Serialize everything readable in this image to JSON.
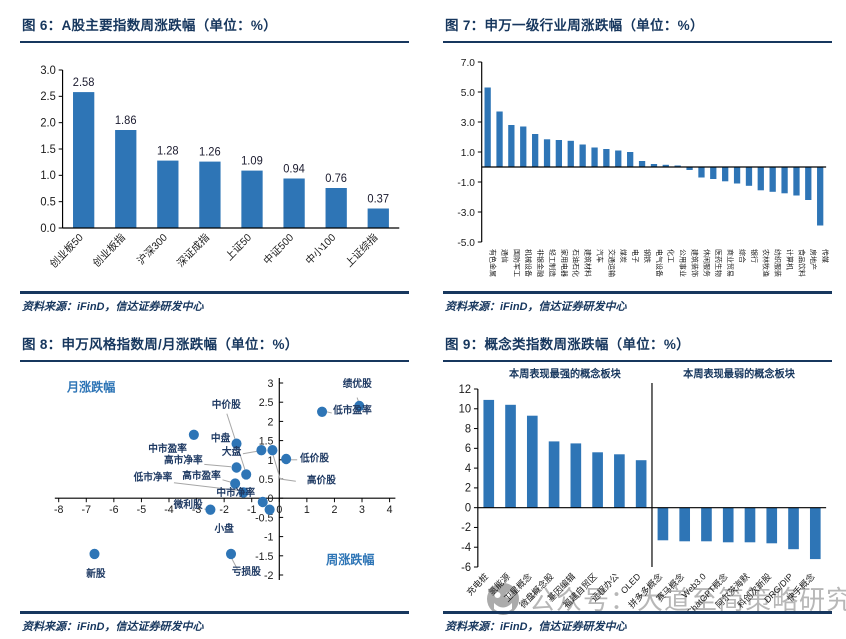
{
  "page": {
    "source_label": "资料来源：iFinD，信达证券研发中心",
    "watermark_text": "公众号：大道至简策略研究"
  },
  "colors": {
    "navy": "#17375e",
    "bar_blue": "#2e75b6",
    "axis_black": "#000000",
    "tick_text": "#1a1a1a",
    "leader_gray": "#a6a6a6",
    "annotation_blue": "#2e75b6",
    "point_label_navy": "#1f3a63",
    "watermark_gray": "#b7b7b7"
  },
  "chart_data": [
    {
      "id": "fig6",
      "type": "bar",
      "title": "图 6：A股主要指数周涨跌幅（单位：%）",
      "categories": [
        "创业板50",
        "创业板指",
        "沪深300",
        "深证成指",
        "上证50",
        "中证500",
        "中小100",
        "上证综指"
      ],
      "values": [
        2.58,
        1.86,
        1.28,
        1.26,
        1.09,
        0.94,
        0.76,
        0.37
      ],
      "data_labels": [
        "2.58",
        "1.86",
        "1.28",
        "1.26",
        "1.09",
        "0.94",
        "0.76",
        "0.37"
      ],
      "ylim": [
        0,
        3
      ],
      "ytick": 0.5,
      "grid": false,
      "legend": "none"
    },
    {
      "id": "fig7",
      "type": "bar",
      "title": "图 7：申万一级行业周涨跌幅（单位：%）",
      "categories": [
        "有色金属",
        "通信",
        "国防军工",
        "机械设备",
        "非银金融",
        "轻工制造",
        "家用电器",
        "石油石化",
        "建筑材料",
        "汽车",
        "交通运输",
        "煤炭",
        "电子",
        "钢铁",
        "电气设备",
        "化工",
        "公用事业",
        "建筑装饰",
        "休闲服务",
        "医药生物",
        "商业贸易",
        "综合",
        "银行",
        "农林牧渔",
        "纺织服装",
        "计算机",
        "食品饮料",
        "房地产",
        "传媒"
      ],
      "values": [
        5.3,
        3.7,
        2.8,
        2.7,
        2.2,
        1.85,
        1.8,
        1.75,
        1.5,
        1.3,
        1.2,
        1.1,
        1.0,
        0.4,
        0.2,
        0.15,
        0.1,
        -0.2,
        -0.7,
        -0.8,
        -0.95,
        -1.1,
        -1.25,
        -1.55,
        -1.65,
        -1.75,
        -1.9,
        -2.2,
        -3.9
      ],
      "ylim": [
        -5,
        7
      ],
      "ytick": 2,
      "grid": false,
      "legend": "none"
    },
    {
      "id": "fig8",
      "type": "scatter",
      "title": "图 8：申万风格指数周/月涨跌幅（单位：%）",
      "xlabel": "周涨跌幅",
      "ylabel": "月涨跌幅",
      "xlim": [
        -8,
        4
      ],
      "xtick": 1,
      "ylim": [
        -2,
        3
      ],
      "ytick": 0.5,
      "grid": false,
      "points": [
        {
          "label": "绩优股",
          "x": 2.9,
          "y": 2.4,
          "label_at": [
            2.3,
            2.9
          ],
          "anchor": "start",
          "leader": [
            [
              2.82,
              2.62
            ],
            [
              2.88,
              2.5
            ]
          ]
        },
        {
          "label": "低市盈率",
          "x": 1.55,
          "y": 2.25,
          "label_at": [
            1.95,
            2.2
          ],
          "anchor": "start",
          "leader": [
            [
              1.72,
              2.25
            ],
            [
              1.9,
              2.22
            ]
          ]
        },
        {
          "label": "中价股",
          "x": -1.2,
          "y": 0.62,
          "label_at": [
            -2.45,
            2.35
          ],
          "anchor": "start",
          "leader": [
            [
              -1.9,
              2.2
            ],
            [
              -1.25,
              0.75
            ]
          ]
        },
        {
          "label": "中盘",
          "x": -1.55,
          "y": 1.42,
          "label_at": [
            -1.78,
            1.48
          ],
          "anchor": "end"
        },
        {
          "label": "大盘",
          "x": -0.65,
          "y": 1.25,
          "label_at": [
            -1.38,
            1.12
          ],
          "anchor": "end",
          "leader": [
            [
              -1.32,
              1.16
            ],
            [
              -0.82,
              1.22
            ]
          ]
        },
        {
          "label": "高价股",
          "x": -0.25,
          "y": 1.25,
          "label_at": [
            1.0,
            0.38
          ],
          "anchor": "start",
          "leader": [
            [
              -0.22,
              1.12
            ],
            [
              0.03,
              0.5
            ],
            [
              0.6,
              0.44
            ]
          ]
        },
        {
          "label": "低价股",
          "x": 0.25,
          "y": 1.02,
          "label_at": [
            0.75,
            0.96
          ],
          "anchor": "start",
          "leader": [
            [
              0.42,
              1.0
            ],
            [
              0.65,
              1.0
            ]
          ]
        },
        {
          "label": "高市净率",
          "x": -1.55,
          "y": 0.8,
          "label_at": [
            -2.78,
            0.9
          ],
          "anchor": "end",
          "leader": [
            [
              -2.72,
              0.88
            ],
            [
              -1.75,
              0.82
            ]
          ]
        },
        {
          "label": "中市盈率",
          "x": -3.1,
          "y": 1.65,
          "label_at": [
            -3.35,
            1.2
          ],
          "anchor": "end"
        },
        {
          "label": "高市盈率",
          "x": -1.6,
          "y": 0.38,
          "label_at": [
            -2.12,
            0.5
          ],
          "anchor": "end",
          "leader": [
            [
              -2.06,
              0.48
            ],
            [
              -1.76,
              0.42
            ]
          ]
        },
        {
          "label": "低市净率",
          "x": -1.3,
          "y": 0.15,
          "label_at": [
            -3.88,
            0.46
          ],
          "anchor": "end",
          "leader": [
            [
              -3.82,
              0.4
            ],
            [
              -1.45,
              0.2
            ]
          ]
        },
        {
          "label": "中市净率",
          "x": -0.6,
          "y": -0.1,
          "label_at": [
            -0.88,
            0.06
          ],
          "anchor": "end"
        },
        {
          "label": "小盘",
          "x": -0.35,
          "y": -0.3,
          "label_at": [
            -2.35,
            -0.88
          ],
          "anchor": "start"
        },
        {
          "label": "微利股",
          "x": -2.5,
          "y": -0.3,
          "label_at": [
            -2.78,
            -0.26
          ],
          "anchor": "end",
          "leader": [
            [
              -2.72,
              -0.28
            ],
            [
              -2.6,
              -0.3
            ]
          ]
        },
        {
          "label": "新股",
          "x": -6.7,
          "y": -1.45,
          "label_at": [
            -7.0,
            -2.05
          ],
          "anchor": "start"
        },
        {
          "label": "亏损股",
          "x": -1.75,
          "y": -1.45,
          "label_at": [
            -1.72,
            -2.0
          ],
          "anchor": "start",
          "leader": [
            [
              -1.73,
              -1.56
            ],
            [
              -1.52,
              -1.85
            ]
          ]
        }
      ]
    },
    {
      "id": "fig9",
      "type": "bar",
      "title": "图 9：概念类指数周涨跌幅（单位：%）",
      "group_labels": [
        "本周表现最强的概念板块",
        "本周表现最弱的概念板块"
      ],
      "categories": [
        "充电桩",
        "氢能源",
        "卫星概念",
        "微盘概念股",
        "基因编辑",
        "福建自贸区",
        "远程办公",
        "OLED",
        "拼多多概念",
        "赛马概念",
        "Web3.0",
        "ChatGPT概念",
        "阿尔茨海默",
        "科创次新股",
        "DRG/DIP",
        "快手概念"
      ],
      "values": [
        10.9,
        10.4,
        9.3,
        6.7,
        6.5,
        5.6,
        5.4,
        4.8,
        -3.3,
        -3.4,
        -3.4,
        -3.5,
        -3.5,
        -3.6,
        -4.2,
        -5.2
      ],
      "ylim": [
        -6,
        12
      ],
      "ytick": 2,
      "divider_after": 8,
      "grid": false,
      "legend": "none"
    }
  ]
}
